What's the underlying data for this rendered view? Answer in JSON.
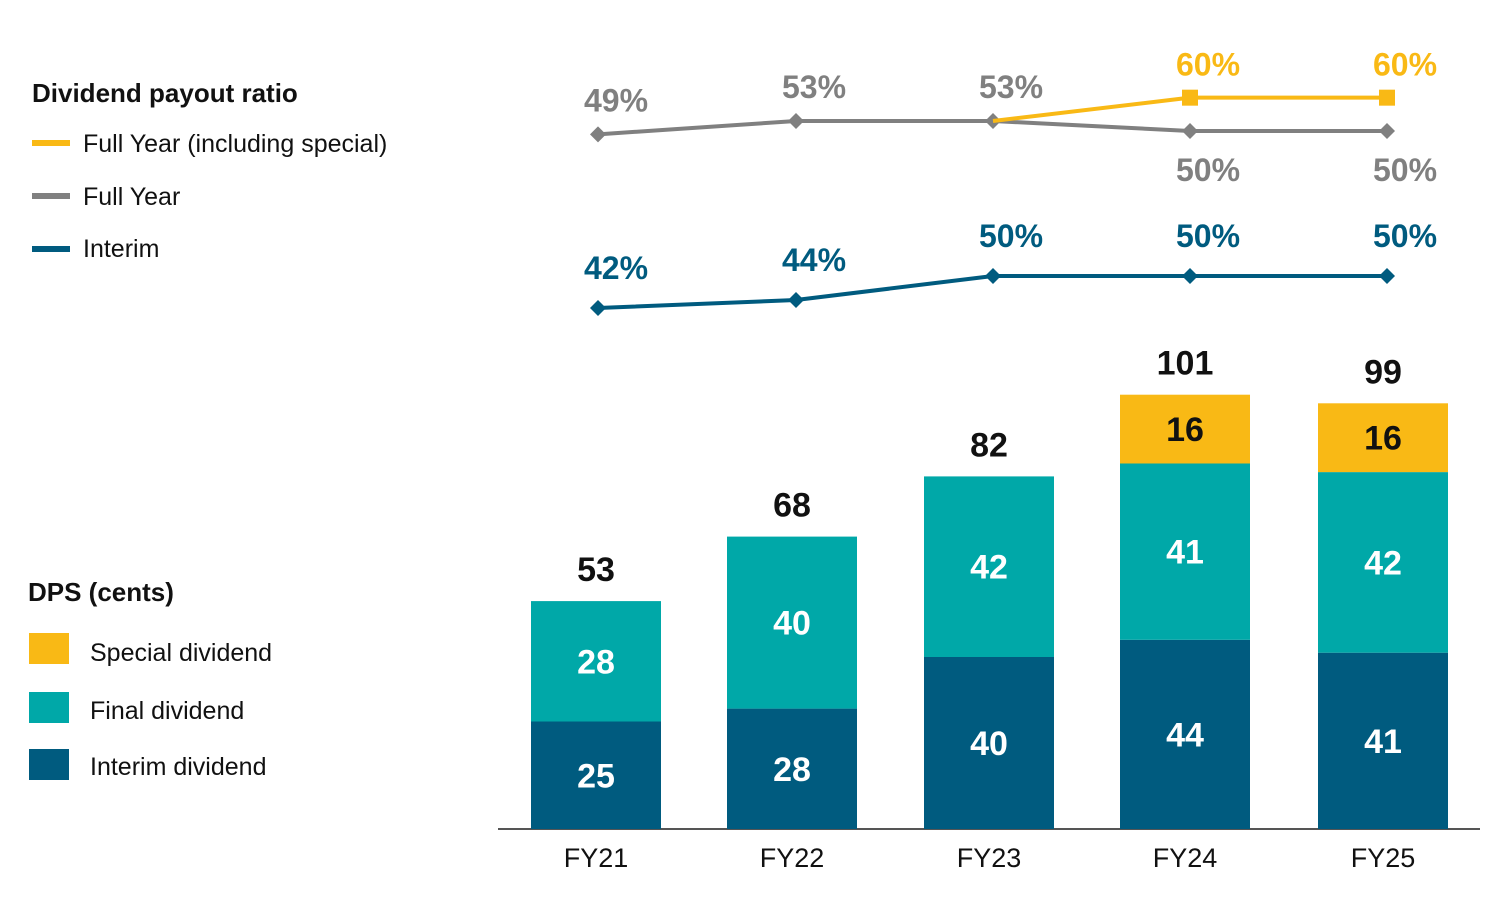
{
  "chart_data": [
    {
      "type": "line",
      "legend_title": "Dividend payout ratio",
      "categories": [
        "FY21",
        "FY22",
        "FY23",
        "FY24",
        "FY25"
      ],
      "series": [
        {
          "name": "Full Year (including special)",
          "color": "#F9B915",
          "values": [
            null,
            null,
            53,
            60,
            60
          ],
          "labels": [
            "",
            "",
            "",
            "60%",
            "60%"
          ]
        },
        {
          "name": "Full Year",
          "color": "#808080",
          "values": [
            49,
            53,
            53,
            50,
            50
          ],
          "labels": [
            "49%",
            "53%",
            "53%",
            "50%",
            "50%"
          ]
        },
        {
          "name": "Interim",
          "color": "#005B7F",
          "values": [
            42,
            44,
            50,
            50,
            50
          ],
          "labels": [
            "42%",
            "44%",
            "50%",
            "50%",
            "50%"
          ]
        }
      ]
    },
    {
      "type": "bar",
      "stacked": true,
      "legend_title": "DPS (cents)",
      "categories": [
        "FY21",
        "FY22",
        "FY23",
        "FY24",
        "FY25"
      ],
      "series": [
        {
          "name": "Interim dividend",
          "color": "#005B7F",
          "values": [
            25,
            28,
            40,
            44,
            41
          ],
          "labels": [
            "25",
            "28",
            "40",
            "44",
            "41"
          ]
        },
        {
          "name": "Final dividend",
          "color": "#00A8A8",
          "values": [
            28,
            40,
            42,
            41,
            42
          ],
          "labels": [
            "28",
            "40",
            "42",
            "41",
            "42"
          ]
        },
        {
          "name": "Special dividend",
          "color": "#F9B915",
          "values": [
            0,
            0,
            0,
            16,
            16
          ],
          "labels": [
            "",
            "",
            "",
            "16",
            "16"
          ]
        }
      ],
      "totals": [
        53,
        68,
        82,
        101,
        99
      ],
      "total_labels": [
        "53",
        "68",
        "82",
        "101",
        "99"
      ]
    }
  ]
}
